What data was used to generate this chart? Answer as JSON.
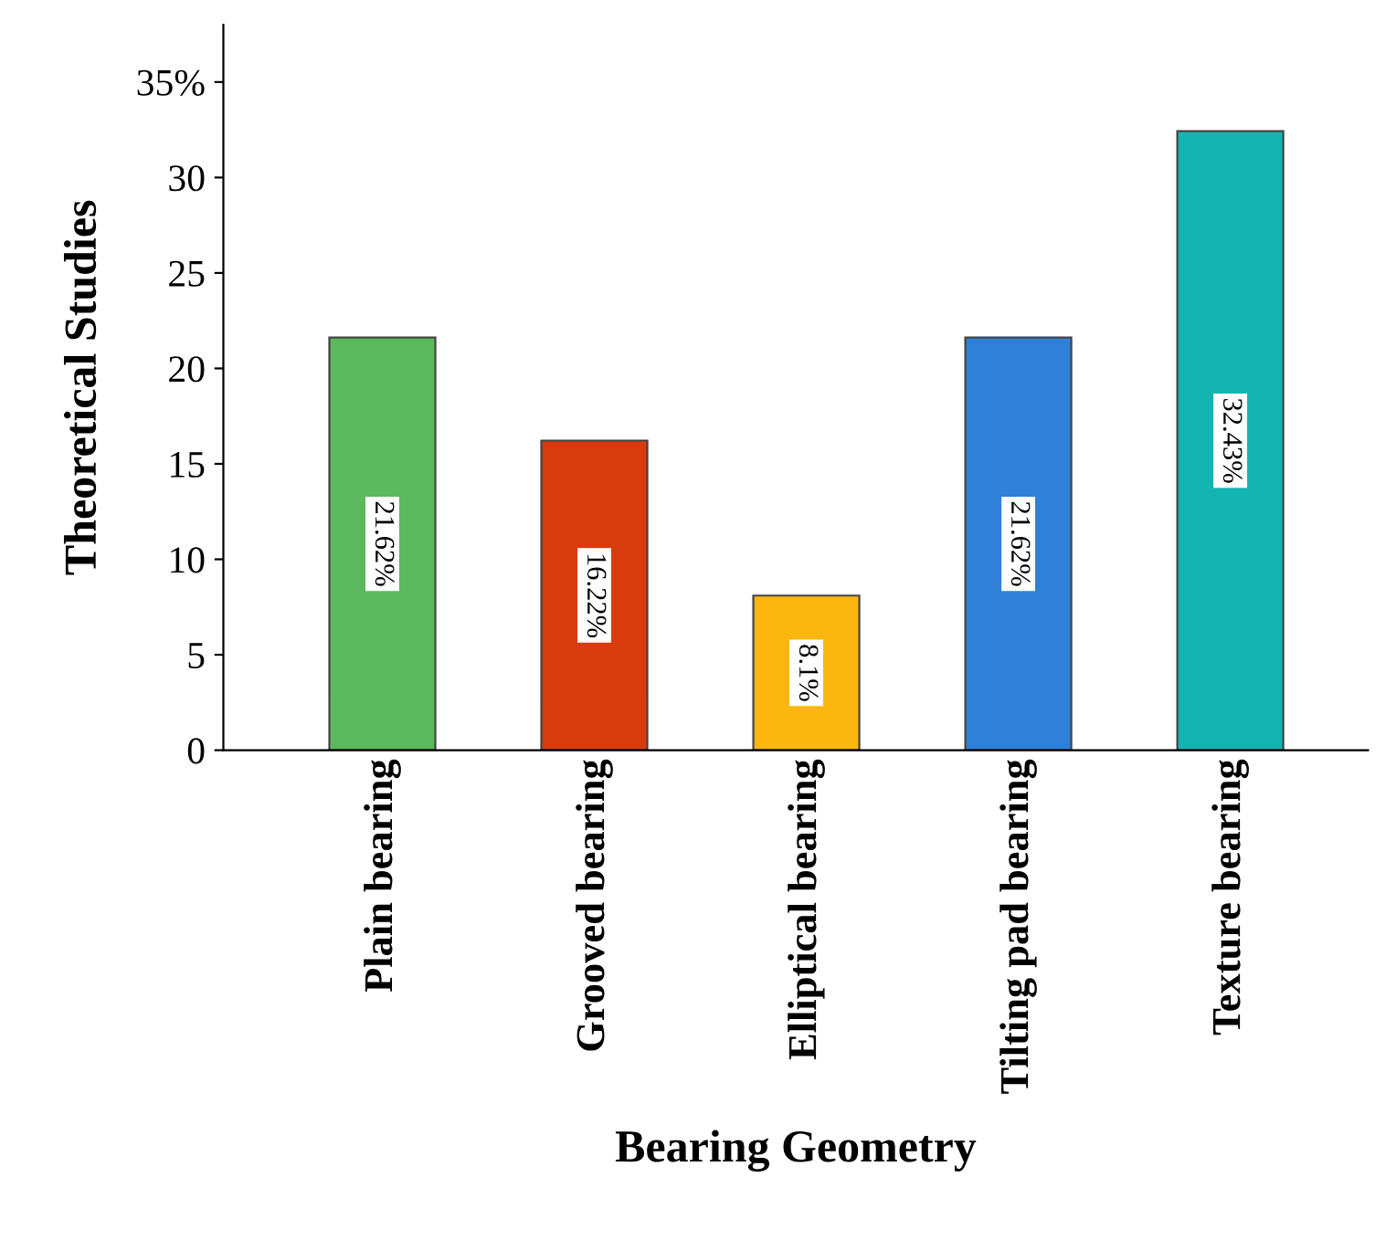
{
  "chart_data": {
    "type": "bar",
    "xlabel": "Bearing Geometry",
    "ylabel": "Theoretical Studies",
    "categories": [
      "Plain bearing",
      "Grooved bearing",
      "Elliptical bearing",
      "Tilting pad bearing",
      "Texture bearing"
    ],
    "values": [
      21.62,
      16.22,
      8.1,
      21.62,
      32.43
    ],
    "colors": [
      "#5cb85c",
      "#d83b0e",
      "#fbb70f",
      "#2f80d8",
      "#14b4b0"
    ],
    "value_labels": [
      "21.62%",
      "16.22%",
      "8.1%",
      "21.62%",
      "32.43%"
    ],
    "ylim": [
      0,
      38
    ],
    "yticks": [
      0,
      5,
      10,
      15,
      20,
      25,
      30,
      {
        "value": 35,
        "label": "35%"
      }
    ],
    "grid": false,
    "legend": false
  }
}
